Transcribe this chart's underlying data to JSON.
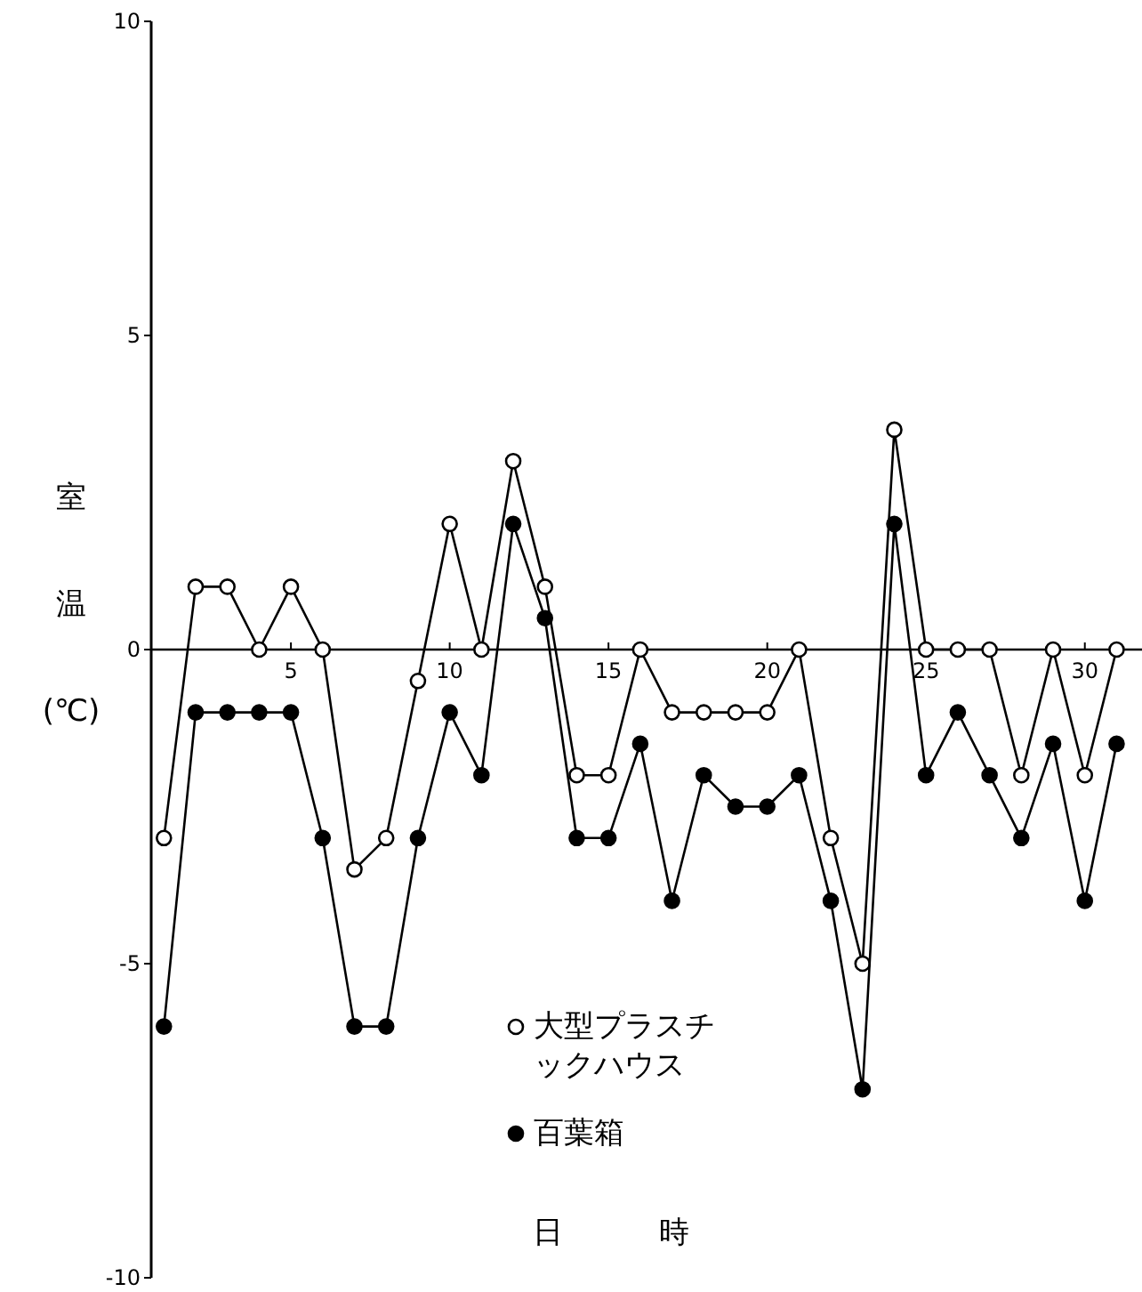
{
  "chart_data": {
    "type": "line",
    "xlabel": "日 時",
    "ylabel": "室温(℃)",
    "x": [
      1,
      2,
      3,
      4,
      5,
      6,
      7,
      8,
      9,
      10,
      11,
      12,
      13,
      14,
      15,
      16,
      17,
      18,
      19,
      20,
      21,
      22,
      23,
      24,
      25,
      26,
      27,
      28,
      29,
      30,
      31
    ],
    "series": [
      {
        "name": "大型プラスチックハウス",
        "color": "#000000",
        "values": [
          -3,
          1,
          1,
          0,
          1,
          0,
          -3.5,
          -3,
          -0.5,
          2,
          0,
          3,
          1,
          -2,
          -2,
          0,
          -1,
          -1,
          -1,
          -1,
          0,
          -3,
          -5,
          3.5,
          0,
          0,
          0,
          -2,
          0,
          -2,
          0
        ]
      },
      {
        "name": "百葉箱",
        "color": "#000000",
        "values": [
          -6,
          -1,
          -1,
          -1,
          -1,
          -3,
          -6,
          -6,
          -3,
          -1,
          -2,
          2,
          0.5,
          -3,
          -3,
          -1.5,
          -4,
          -2,
          -2.5,
          -2.5,
          -2,
          -4,
          -7,
          2,
          -2,
          -1,
          -2,
          -3,
          -1.5,
          -4,
          -1.5
        ]
      }
    ],
    "xlim": [
      0.6,
      31.8
    ],
    "xticks": [
      5,
      10,
      15,
      20,
      25,
      30
    ],
    "ylim": [
      -10,
      10
    ],
    "yticks": [
      -10,
      -5,
      0,
      5,
      10
    ],
    "marker": "circle",
    "line_style": "solid",
    "legend": "bottom",
    "grid": false
  }
}
